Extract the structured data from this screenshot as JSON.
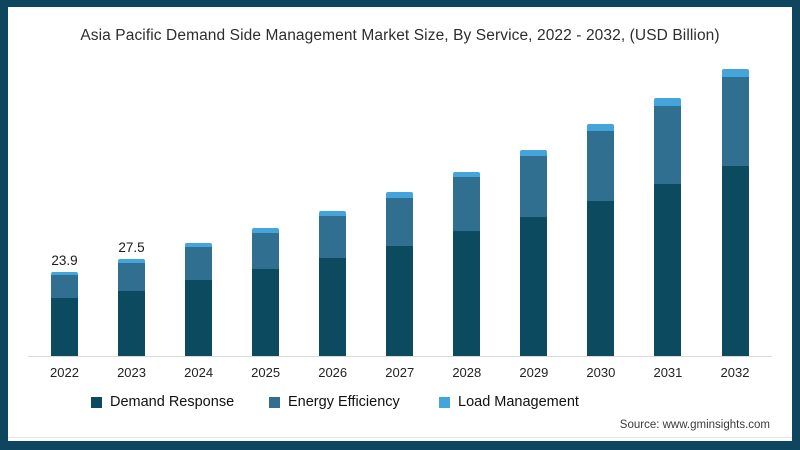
{
  "page": {
    "title": "Asia Pacific Demand Side Management Market Size, By Service, 2022 - 2032, (USD Billion)",
    "source": "Source: www.gminsights.com"
  },
  "colors": {
    "demand_response": "#0c4a5f",
    "energy_efficiency": "#306f90",
    "load_management": "#45a4da",
    "frame_border": "#0d465e",
    "axis_line": "#d9d9d9"
  },
  "chart_data": {
    "type": "bar",
    "stacked": true,
    "title": "Asia Pacific Demand Side Management Market Size, By Service, 2022 - 2032, (USD Billion)",
    "unit": "USD Billion",
    "categories": [
      "2022",
      "2023",
      "2024",
      "2025",
      "2026",
      "2027",
      "2028",
      "2029",
      "2030",
      "2031",
      "2032"
    ],
    "series": [
      {
        "name": "Demand Response",
        "color": "#0c4a5f",
        "values": [
          16.4,
          18.6,
          21.7,
          24.6,
          27.9,
          31.2,
          35.4,
          39.4,
          43.9,
          48.9,
          54.1
        ]
      },
      {
        "name": "Energy Efficiency",
        "color": "#306f90",
        "values": [
          6.5,
          7.7,
          9.2,
          10.4,
          12.0,
          13.8,
          15.4,
          17.4,
          20.0,
          22.2,
          25.2
        ]
      },
      {
        "name": "Load Management",
        "color": "#45a4da",
        "values": [
          1.0,
          1.2,
          1.2,
          1.3,
          1.4,
          1.5,
          1.6,
          1.7,
          2.0,
          2.3,
          2.2
        ]
      }
    ],
    "totals": [
      23.9,
      27.5,
      32.1,
      36.3,
      41.3,
      46.5,
      52.4,
      58.5,
      65.9,
      73.4,
      81.5
    ],
    "data_labels": [
      "23.9",
      "27.5",
      "",
      "",
      "",
      "",
      "",
      "",
      "",
      "",
      ""
    ],
    "xlabel": "",
    "ylabel": "",
    "ylim": [
      0,
      90
    ],
    "grid": false,
    "legend_position": "bottom"
  }
}
